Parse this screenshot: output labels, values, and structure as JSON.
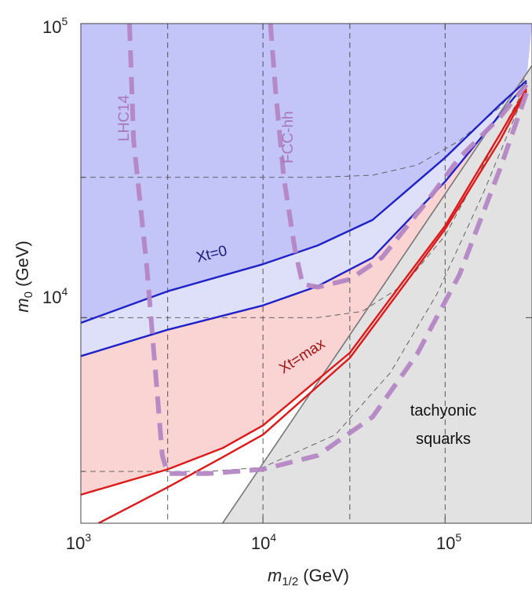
{
  "chart_data": {
    "type": "line",
    "x_scale": "log",
    "y_scale": "log",
    "xlim": [
      1000,
      300000
    ],
    "ylim": [
      2000,
      100000
    ],
    "xlabel": "m1/2 (GeV)",
    "ylabel": "m0 (GeV)",
    "x_ticks": [
      {
        "base": "10",
        "exp": "3"
      },
      {
        "base": "10",
        "exp": "4"
      },
      {
        "base": "10",
        "exp": "5"
      }
    ],
    "y_ticks": [
      {
        "base": "10",
        "exp": "4"
      },
      {
        "base": "10",
        "exp": "5"
      }
    ],
    "grid": "dashed at x = 3000, 10000, 30000, 100000 and y = 3000, 10000, 30000",
    "colors": {
      "blue_region": "#c3c5f9",
      "blue_band": "#dedff9",
      "red_region": "#fad3d3",
      "tachyonic": "#e2e2e2",
      "blue_line": "#1f22c8",
      "red_line": "#dd1a1a",
      "reach": "#b486c3",
      "boundary": "#777777",
      "label_blue": "#1a1a7a",
      "label_red": "#a01414",
      "label_reach": "#a678b8"
    },
    "series": [
      {
        "name": "Xt=0 (upper)",
        "color": "#1f22c8",
        "points": [
          [
            1000,
            9600
          ],
          [
            3000,
            12300
          ],
          [
            10000,
            15200
          ],
          [
            20000,
            17600
          ],
          [
            40000,
            21500
          ],
          [
            100000,
            35000
          ],
          [
            200000,
            53000
          ],
          [
            280000,
            64000
          ]
        ]
      },
      {
        "name": "Xt=0 (lower)",
        "color": "#1f22c8",
        "points": [
          [
            1000,
            7400
          ],
          [
            3000,
            9100
          ],
          [
            10000,
            11000
          ],
          [
            20000,
            12800
          ],
          [
            40000,
            16000
          ],
          [
            100000,
            29000
          ],
          [
            200000,
            49000
          ],
          [
            280000,
            63000
          ]
        ]
      },
      {
        "name": "Xt=max (upper)",
        "color": "#dd1a1a",
        "points": [
          [
            1000,
            2500
          ],
          [
            3000,
            3050
          ],
          [
            6000,
            3600
          ],
          [
            10000,
            4300
          ],
          [
            30000,
            7600
          ],
          [
            60000,
            13500
          ],
          [
            100000,
            20500
          ],
          [
            200000,
            42000
          ],
          [
            280000,
            60000
          ]
        ]
      },
      {
        "name": "Xt=max (lower)",
        "color": "#dd1a1a",
        "points": [
          [
            1250,
            2000
          ],
          [
            3000,
            2650
          ],
          [
            6000,
            3350
          ],
          [
            10000,
            4000
          ],
          [
            30000,
            7300
          ],
          [
            60000,
            13000
          ],
          [
            100000,
            20000
          ],
          [
            200000,
            40000
          ],
          [
            280000,
            59000
          ]
        ]
      },
      {
        "name": "LHC14 reach",
        "color": "#b486c3",
        "points": [
          [
            1850,
            100000
          ],
          [
            1950,
            40000
          ],
          [
            2300,
            15000
          ],
          [
            2600,
            6000
          ],
          [
            2800,
            3400
          ],
          [
            3000,
            2950
          ],
          [
            5000,
            2950
          ],
          [
            10000,
            3050
          ],
          [
            20000,
            3400
          ],
          [
            40000,
            4600
          ],
          [
            70000,
            7500
          ],
          [
            120000,
            14000
          ],
          [
            200000,
            32000
          ],
          [
            280000,
            58000
          ]
        ]
      },
      {
        "name": "FCC-hh reach",
        "color": "#b486c3",
        "points": [
          [
            11000,
            100000
          ],
          [
            11700,
            60000
          ],
          [
            13000,
            30000
          ],
          [
            15000,
            17000
          ],
          [
            16500,
            13000
          ],
          [
            20000,
            12700
          ],
          [
            30000,
            13500
          ],
          [
            45000,
            16000
          ],
          [
            60000,
            20000
          ],
          [
            80000,
            25000
          ],
          [
            120000,
            35000
          ],
          [
            200000,
            48000
          ],
          [
            280000,
            62000
          ]
        ]
      },
      {
        "name": "dashed contour 1",
        "color": "#555555",
        "points": [
          [
            1000,
            30000
          ],
          [
            20000,
            30000
          ],
          [
            40000,
            30500
          ],
          [
            70000,
            33000
          ],
          [
            120000,
            40000
          ],
          [
            200000,
            52000
          ],
          [
            280000,
            66000
          ]
        ]
      },
      {
        "name": "dashed contour 2",
        "color": "#555555",
        "points": [
          [
            1000,
            10000
          ],
          [
            20000,
            10000
          ],
          [
            35000,
            10500
          ],
          [
            60000,
            13000
          ],
          [
            100000,
            19000
          ],
          [
            200000,
            42000
          ],
          [
            280000,
            62000
          ]
        ]
      },
      {
        "name": "dashed contour 3",
        "color": "#555555",
        "points": [
          [
            1000,
            3000
          ],
          [
            5000,
            3000
          ],
          [
            10000,
            3100
          ],
          [
            25000,
            4000
          ],
          [
            50000,
            6500
          ],
          [
            90000,
            12000
          ],
          [
            160000,
            26000
          ],
          [
            280000,
            60000
          ]
        ]
      },
      {
        "name": "tachyonic boundary",
        "color": "#777777",
        "points": [
          [
            6000,
            2000
          ],
          [
            300000,
            72000
          ]
        ]
      }
    ],
    "annotations": {
      "lhc14": "LHC14",
      "fcc": "FCC-hh",
      "xt0": "Xt=0",
      "xtmax": "Xt=max",
      "tachyonic_line1": "tachyonic",
      "tachyonic_line2": "squarks"
    }
  }
}
